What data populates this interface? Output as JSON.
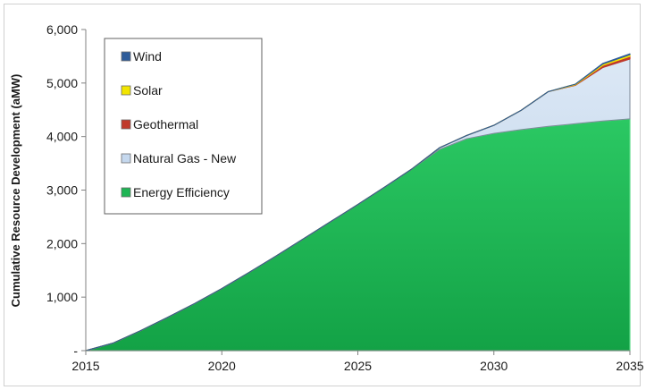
{
  "chart_data": {
    "type": "area",
    "stacked": true,
    "x": [
      2015,
      2016,
      2017,
      2018,
      2019,
      2020,
      2021,
      2022,
      2023,
      2024,
      2025,
      2026,
      2027,
      2028,
      2029,
      2030,
      2031,
      2032,
      2033,
      2034,
      2035
    ],
    "xticks": [
      "2015",
      "2020",
      "2025",
      "2030",
      "2035"
    ],
    "ylabel": "Cumulative Resource Development (aMW)",
    "ylim": [
      0,
      6000
    ],
    "yticks": [
      "-",
      "1,000",
      "2,000",
      "3,000",
      "4,000",
      "5,000",
      "6,000"
    ],
    "grid": false,
    "legend_position": "top-left",
    "series": [
      {
        "name": "Energy Efficiency",
        "color": "#1fb554",
        "values": [
          0,
          140,
          370,
          620,
          880,
          1160,
          1460,
          1770,
          2090,
          2410,
          2730,
          3060,
          3400,
          3760,
          3960,
          4060,
          4130,
          4190,
          4240,
          4290,
          4330
        ]
      },
      {
        "name": "Natural Gas - New",
        "color": "#c5d8ee",
        "values": [
          0,
          0,
          0,
          0,
          0,
          0,
          0,
          0,
          0,
          0,
          0,
          0,
          0,
          30,
          60,
          150,
          360,
          650,
          720,
          1000,
          1120
        ]
      },
      {
        "name": "Geothermal",
        "color": "#c0392b",
        "values": [
          0,
          0,
          0,
          0,
          0,
          0,
          0,
          0,
          0,
          0,
          0,
          0,
          0,
          0,
          0,
          0,
          0,
          0,
          10,
          40,
          50
        ]
      },
      {
        "name": "Solar",
        "color": "#f2e500",
        "values": [
          0,
          0,
          0,
          0,
          0,
          0,
          0,
          0,
          0,
          0,
          0,
          0,
          0,
          0,
          0,
          0,
          0,
          0,
          10,
          25,
          30
        ]
      },
      {
        "name": "Wind",
        "color": "#2e5c9a",
        "values": [
          0,
          0,
          0,
          0,
          0,
          0,
          0,
          0,
          0,
          0,
          0,
          0,
          0,
          0,
          0,
          0,
          0,
          0,
          0,
          10,
          15
        ]
      }
    ],
    "legend_order": [
      "Wind",
      "Solar",
      "Geothermal",
      "Natural Gas - New",
      "Energy Efficiency"
    ]
  }
}
